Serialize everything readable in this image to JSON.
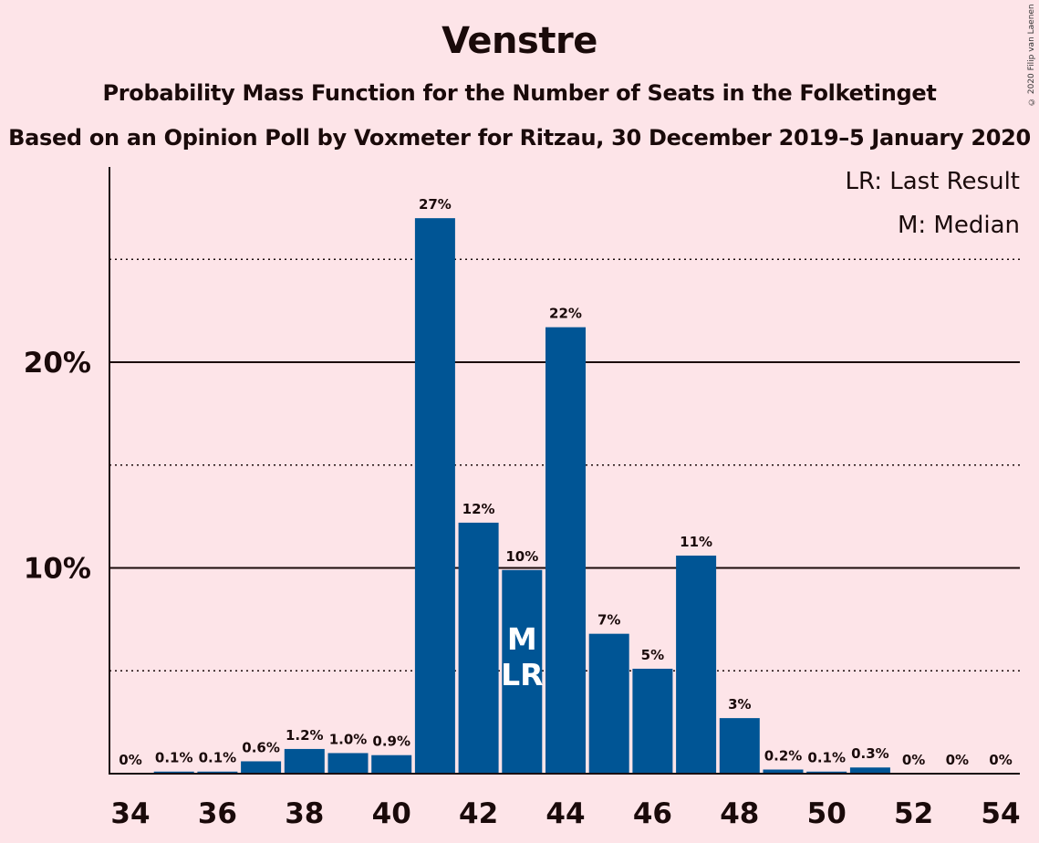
{
  "chart_data": {
    "type": "bar",
    "title": "Venstre",
    "subtitle": "Probability Mass Function for the Number of Seats in the Folketinget",
    "subtitle2": "Based on an Opinion Poll by Voxmeter for Ritzau, 30 December 2019–5 January 2020",
    "copyright": "© 2020 Filip van Laenen",
    "legend": [
      "LR: Last Result",
      "M: Median"
    ],
    "x": [
      34,
      35,
      36,
      37,
      38,
      39,
      40,
      41,
      42,
      43,
      44,
      45,
      46,
      47,
      48,
      49,
      50,
      51,
      52,
      53,
      54
    ],
    "values": [
      0,
      0.1,
      0.1,
      0.6,
      1.2,
      1.0,
      0.9,
      27,
      12.2,
      9.9,
      21.7,
      6.8,
      5.1,
      10.6,
      2.7,
      0.2,
      0.1,
      0.3,
      0,
      0,
      0
    ],
    "labels": [
      "0%",
      "0.1%",
      "0.1%",
      "0.6%",
      "1.2%",
      "1.0%",
      "0.9%",
      "27%",
      "12%",
      "10%",
      "22%",
      "7%",
      "5%",
      "11%",
      "3%",
      "0.2%",
      "0.1%",
      "0.3%",
      "0%",
      "0%",
      "0%"
    ],
    "xticks": [
      34,
      36,
      38,
      40,
      42,
      44,
      46,
      48,
      50,
      52,
      54
    ],
    "yticks": [
      {
        "value": 10,
        "label": "10%"
      },
      {
        "value": 20,
        "label": "20%"
      }
    ],
    "ylim": [
      0,
      29.5
    ],
    "median": 43,
    "last_result": 43,
    "median_label": "M",
    "last_result_label": "LR",
    "bar_color": "#005595",
    "background": "#fde4e8"
  }
}
